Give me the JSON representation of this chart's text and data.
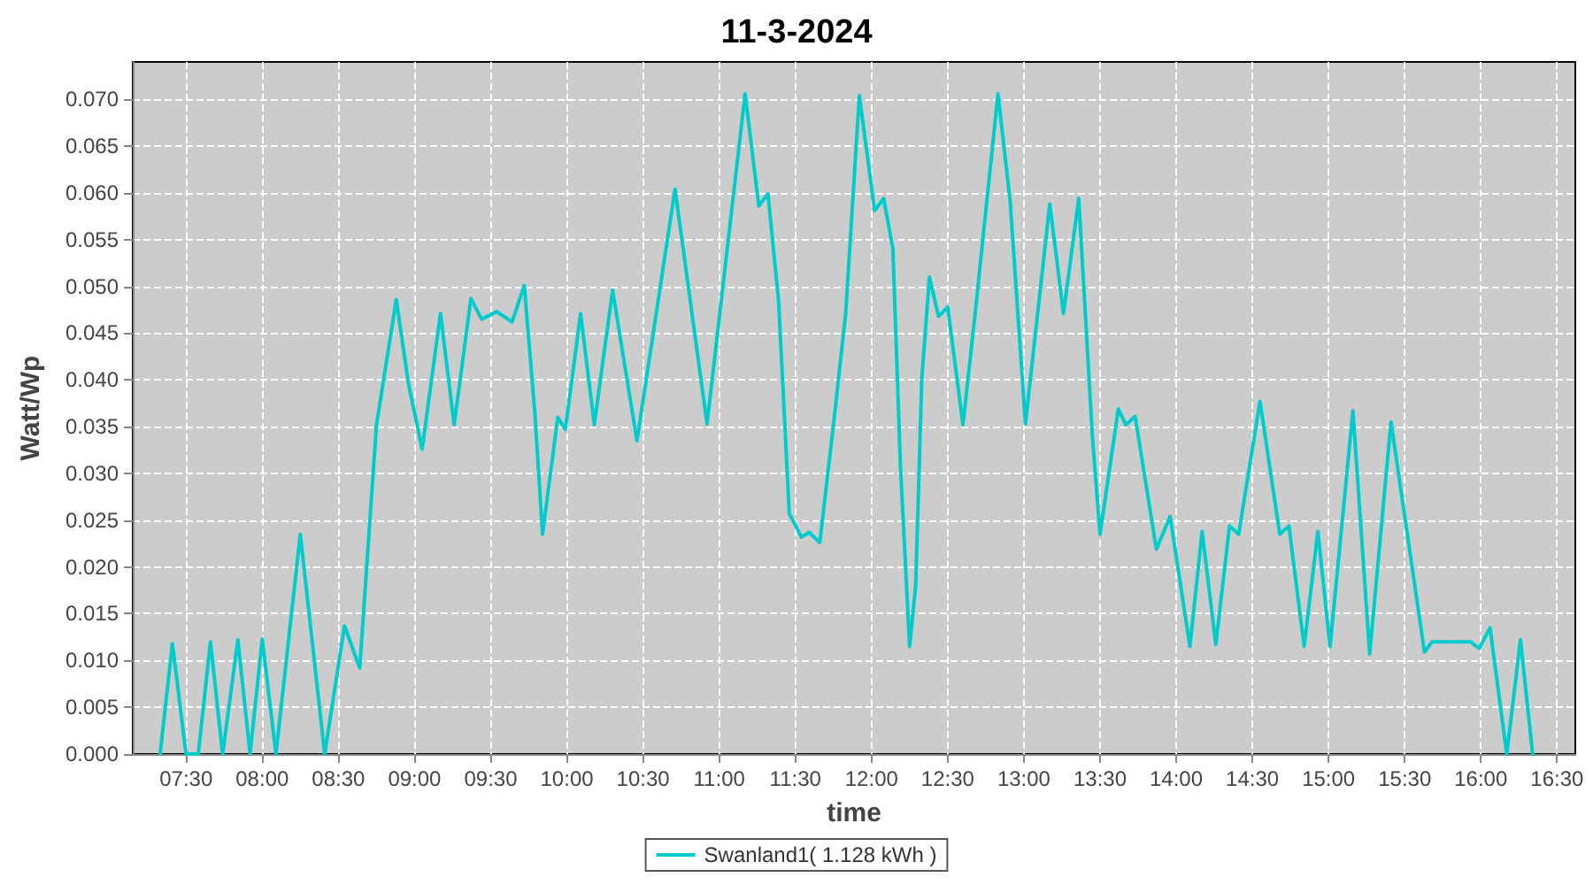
{
  "chart_data": {
    "type": "line",
    "title": "11-3-2024",
    "xlabel": "time",
    "ylabel": "Watt/Wp",
    "x": [
      7.33,
      7.41,
      7.5,
      7.58,
      7.66,
      7.74,
      7.84,
      7.92,
      8.0,
      8.09,
      8.25,
      8.41,
      8.54,
      8.64,
      8.75,
      8.88,
      8.96,
      9.05,
      9.17,
      9.26,
      9.37,
      9.44,
      9.54,
      9.64,
      9.72,
      9.79,
      9.84,
      9.94,
      9.99,
      10.09,
      10.18,
      10.3,
      10.46,
      10.71,
      10.92,
      11.17,
      11.26,
      11.32,
      11.39,
      11.46,
      11.54,
      11.59,
      11.66,
      11.75,
      11.83,
      11.92,
      12.02,
      12.08,
      12.14,
      12.19,
      12.25,
      12.29,
      12.33,
      12.38,
      12.44,
      12.5,
      12.6,
      12.68,
      12.83,
      12.91,
      13.01,
      13.17,
      13.26,
      13.36,
      13.45,
      13.5,
      13.62,
      13.67,
      13.73,
      13.87,
      13.96,
      14.09,
      14.17,
      14.26,
      14.35,
      14.41,
      14.55,
      14.68,
      14.74,
      14.84,
      14.93,
      15.01,
      15.16,
      15.27,
      15.41,
      15.63,
      15.68,
      15.93,
      15.99,
      16.06,
      16.17,
      16.26,
      16.34
    ],
    "series": [
      {
        "name": "Swanland1( 1.128 kWh )",
        "color": "#00cccc",
        "values": [
          0,
          0.0118,
          0,
          0,
          0.012,
          0,
          0.0122,
          0,
          0.0123,
          0,
          0.0235,
          0,
          0.0137,
          0.0092,
          0.0352,
          0.0486,
          0.0396,
          0.0326,
          0.0471,
          0.0352,
          0.0487,
          0.0465,
          0.0473,
          0.0462,
          0.0501,
          0.0364,
          0.0235,
          0.036,
          0.0347,
          0.0471,
          0.0352,
          0.0496,
          0.0335,
          0.0604,
          0.0353,
          0.0706,
          0.0586,
          0.0599,
          0.0484,
          0.0257,
          0.0232,
          0.0237,
          0.0226,
          0.0352,
          0.0471,
          0.0704,
          0.0581,
          0.0594,
          0.054,
          0.0307,
          0.0115,
          0.0181,
          0.0402,
          0.051,
          0.0468,
          0.0478,
          0.0352,
          0.0471,
          0.0706,
          0.0591,
          0.0353,
          0.0588,
          0.0471,
          0.0594,
          0.0339,
          0.0235,
          0.0369,
          0.0352,
          0.0361,
          0.0219,
          0.0254,
          0.0115,
          0.0238,
          0.0117,
          0.0244,
          0.0235,
          0.0377,
          0.0235,
          0.0244,
          0.0115,
          0.0238,
          0.0115,
          0.0367,
          0.0107,
          0.0355,
          0.0109,
          0.012,
          0.012,
          0.0113,
          0.0135,
          0,
          0.0122,
          0
        ]
      }
    ],
    "xlim": [
      7.15,
      16.62
    ],
    "xticks": [
      {
        "value": 7.5,
        "label": "07:30"
      },
      {
        "value": 8,
        "label": "08:00"
      },
      {
        "value": 8.5,
        "label": "08:30"
      },
      {
        "value": 9,
        "label": "09:00"
      },
      {
        "value": 9.5,
        "label": "09:30"
      },
      {
        "value": 10,
        "label": "10:00"
      },
      {
        "value": 10.5,
        "label": "10:30"
      },
      {
        "value": 11,
        "label": "11:00"
      },
      {
        "value": 11.5,
        "label": "11:30"
      },
      {
        "value": 12,
        "label": "12:00"
      },
      {
        "value": 12.5,
        "label": "12:30"
      },
      {
        "value": 13,
        "label": "13:00"
      },
      {
        "value": 13.5,
        "label": "13:30"
      },
      {
        "value": 14,
        "label": "14:00"
      },
      {
        "value": 14.5,
        "label": "14:30"
      },
      {
        "value": 15,
        "label": "15:00"
      },
      {
        "value": 15.5,
        "label": "15:30"
      },
      {
        "value": 16,
        "label": "16:00"
      },
      {
        "value": 16.5,
        "label": "16:30"
      }
    ],
    "ylim": [
      0,
      0.074
    ],
    "yticks": [
      {
        "value": 0,
        "label": "0.000"
      },
      {
        "value": 0.005,
        "label": "0.005"
      },
      {
        "value": 0.01,
        "label": "0.010"
      },
      {
        "value": 0.015,
        "label": "0.015"
      },
      {
        "value": 0.02,
        "label": "0.020"
      },
      {
        "value": 0.025,
        "label": "0.025"
      },
      {
        "value": 0.03,
        "label": "0.030"
      },
      {
        "value": 0.035,
        "label": "0.035"
      },
      {
        "value": 0.04,
        "label": "0.040"
      },
      {
        "value": 0.045,
        "label": "0.045"
      },
      {
        "value": 0.05,
        "label": "0.050"
      },
      {
        "value": 0.055,
        "label": "0.055"
      },
      {
        "value": 0.06,
        "label": "0.060"
      },
      {
        "value": 0.065,
        "label": "0.065"
      },
      {
        "value": 0.07,
        "label": "0.070"
      }
    ],
    "grid": true,
    "legend": "bottom",
    "marker": "none",
    "line_style": "solid"
  }
}
